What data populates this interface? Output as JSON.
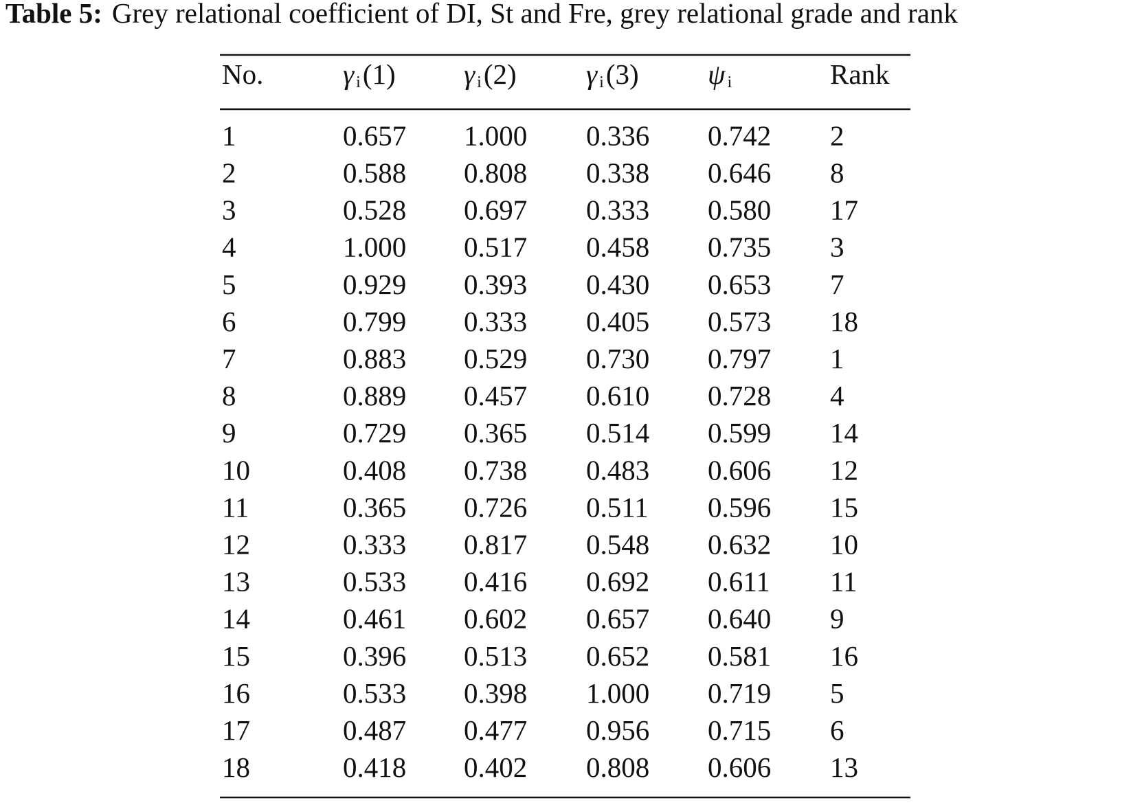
{
  "caption": {
    "label": "Table 5:",
    "text": "Grey relational coefficient of DI, St and Fre, grey relational grade and rank"
  },
  "table": {
    "header": [
      {
        "text": "No."
      },
      {
        "symbol": "γ",
        "subscript": "i",
        "suffix": "(1)"
      },
      {
        "symbol": "γ",
        "subscript": "i",
        "suffix": "(2)"
      },
      {
        "symbol": "γ",
        "subscript": "i",
        "suffix": "(3)"
      },
      {
        "symbol": "ψ",
        "subscript": "i"
      },
      {
        "text": "Rank"
      }
    ],
    "rows": [
      [
        "1",
        "0.657",
        "1.000",
        "0.336",
        "0.742",
        "2"
      ],
      [
        "2",
        "0.588",
        "0.808",
        "0.338",
        "0.646",
        "8"
      ],
      [
        "3",
        "0.528",
        "0.697",
        "0.333",
        "0.580",
        "17"
      ],
      [
        "4",
        "1.000",
        "0.517",
        "0.458",
        "0.735",
        "3"
      ],
      [
        "5",
        "0.929",
        "0.393",
        "0.430",
        "0.653",
        "7"
      ],
      [
        "6",
        "0.799",
        "0.333",
        "0.405",
        "0.573",
        "18"
      ],
      [
        "7",
        "0.883",
        "0.529",
        "0.730",
        "0.797",
        "1"
      ],
      [
        "8",
        "0.889",
        "0.457",
        "0.610",
        "0.728",
        "4"
      ],
      [
        "9",
        "0.729",
        "0.365",
        "0.514",
        "0.599",
        "14"
      ],
      [
        "10",
        "0.408",
        "0.738",
        "0.483",
        "0.606",
        "12"
      ],
      [
        "11",
        "0.365",
        "0.726",
        "0.511",
        "0.596",
        "15"
      ],
      [
        "12",
        "0.333",
        "0.817",
        "0.548",
        "0.632",
        "10"
      ],
      [
        "13",
        "0.533",
        "0.416",
        "0.692",
        "0.611",
        "11"
      ],
      [
        "14",
        "0.461",
        "0.602",
        "0.657",
        "0.640",
        "9"
      ],
      [
        "15",
        "0.396",
        "0.513",
        "0.652",
        "0.581",
        "16"
      ],
      [
        "16",
        "0.533",
        "0.398",
        "1.000",
        "0.719",
        "5"
      ],
      [
        "17",
        "0.487",
        "0.477",
        "0.956",
        "0.715",
        "6"
      ],
      [
        "18",
        "0.418",
        "0.402",
        "0.808",
        "0.606",
        "13"
      ]
    ]
  }
}
